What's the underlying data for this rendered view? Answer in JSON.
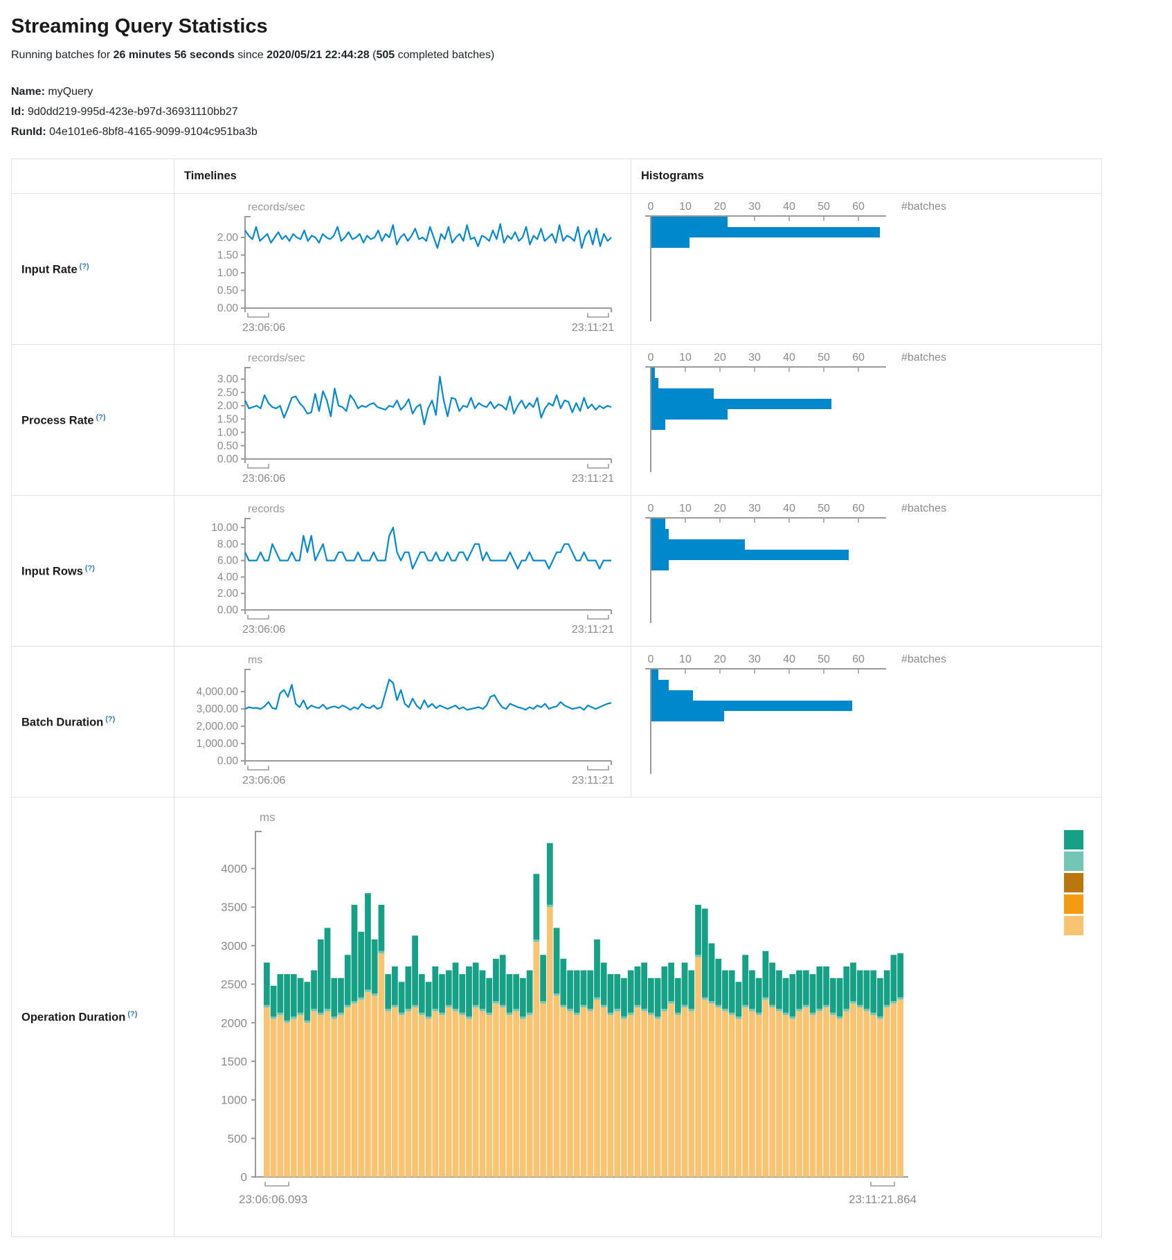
{
  "page": {
    "title": "Streaming Query Statistics",
    "running": {
      "text1": "Running batches for",
      "duration": "26 minutes 56 seconds",
      "text2": "since",
      "start_time": "2020/05/21 22:44:28",
      "text3": "(",
      "completed_count": "505",
      "text4": "completed batches)"
    },
    "query": {
      "name_label": "Name:",
      "name_value": "myQuery",
      "id_label": "Id:",
      "id_value": "9d0dd219-995d-423e-b97d-36931110bb27",
      "runid_label": "RunId:",
      "runid_value": "04e101e6-8bf8-4165-9099-9104c951ba3b"
    }
  },
  "table": {
    "col_timelines": "Timelines",
    "col_histograms": "Histograms",
    "help_marker": "(?)",
    "rows": [
      {
        "label": "Input Rate"
      },
      {
        "label": "Process Rate"
      },
      {
        "label": "Input Rows"
      },
      {
        "label": "Batch Duration"
      },
      {
        "label": "Operation Duration"
      }
    ]
  },
  "colors": {
    "line": "#0088cc",
    "histogram": "#0088cc",
    "axis": "#999999",
    "tick_text": "#8a8a8a",
    "legend": [
      "#16A085",
      "#73C6B6",
      "#B9770E",
      "#F39C12",
      "#F8C471"
    ]
  },
  "chart_data": [
    {
      "type": "line",
      "name": "input-rate-timeline",
      "unit": "records/sec",
      "x_start": "23:06:06",
      "x_end": "23:11:21",
      "ylim": [
        0,
        2.45
      ],
      "ytick_values": [
        0,
        0.5,
        1,
        1.5,
        2
      ],
      "ytick_labels": [
        "0.00",
        "0.50",
        "1.00",
        "1.50",
        "2.00"
      ],
      "values": [
        2.2,
        2.05,
        1.95,
        2.3,
        1.9,
        2.0,
        2.1,
        1.85,
        2.0,
        2.15,
        1.95,
        2.05,
        1.9,
        2.1,
        2.0,
        1.95,
        2.2,
        1.9,
        2.05,
        2.0,
        1.85,
        2.1,
        2.0,
        1.95,
        2.05,
        2.3,
        1.9,
        2.0,
        2.15,
        1.95,
        2.0,
        2.1,
        1.85,
        2.05,
        1.95,
        2.0,
        2.2,
        1.9,
        2.1,
        2.0,
        2.35,
        1.8,
        2.0,
        2.1,
        1.9,
        2.05,
        2.25,
        1.95,
        2.0,
        1.9,
        2.3,
        2.0,
        1.7,
        2.1,
        1.95,
        2.3,
        1.85,
        2.0,
        2.1,
        1.9,
        2.35,
        1.95,
        2.0,
        1.75,
        2.05,
        2.0,
        1.9,
        2.2,
        1.95,
        2.38,
        1.85,
        2.05,
        1.95,
        2.15,
        1.9,
        2.0,
        2.3,
        1.8,
        2.05,
        1.95,
        2.25,
        1.9,
        2.0,
        2.1,
        1.85,
        2.35,
        1.9,
        2.05,
        2.0,
        1.9,
        2.3,
        1.7,
        2.05,
        2.2,
        1.8,
        2.25,
        1.75,
        2.1,
        1.9,
        2.0
      ]
    },
    {
      "type": "bar-h",
      "name": "input-rate-histogram",
      "xlabel": "#batches",
      "xticks": [
        0,
        10,
        20,
        30,
        40,
        50,
        60
      ],
      "xlim": [
        0,
        68
      ],
      "values": [
        22,
        66,
        11
      ]
    },
    {
      "type": "line",
      "name": "process-rate-timeline",
      "unit": "records/sec",
      "x_start": "23:06:06",
      "x_end": "23:11:21",
      "ylim": [
        0,
        3.25
      ],
      "ytick_values": [
        0,
        0.5,
        1,
        1.5,
        2,
        2.5,
        3
      ],
      "ytick_labels": [
        "0.00",
        "0.50",
        "1.00",
        "1.50",
        "2.00",
        "2.50",
        "3.00"
      ],
      "values": [
        2.2,
        1.9,
        1.95,
        2.0,
        1.9,
        2.4,
        2.1,
        1.95,
        1.9,
        2.0,
        1.55,
        1.9,
        2.3,
        2.35,
        2.1,
        1.95,
        1.7,
        1.75,
        2.45,
        1.8,
        2.55,
        2.2,
        1.6,
        2.65,
        2.0,
        1.95,
        1.8,
        2.4,
        2.2,
        1.9,
        2.0,
        1.95,
        2.05,
        2.1,
        1.95,
        1.9,
        1.85,
        2.0,
        1.95,
        2.2,
        1.85,
        2.0,
        2.25,
        1.7,
        1.95,
        2.05,
        1.3,
        1.9,
        2.2,
        1.65,
        3.1,
        2.2,
        1.6,
        2.3,
        2.25,
        1.8,
        2.0,
        1.95,
        2.3,
        1.9,
        2.1,
        2.0,
        1.95,
        2.15,
        1.9,
        2.05,
        2.0,
        1.85,
        2.35,
        1.7,
        2.0,
        2.2,
        1.9,
        2.1,
        1.95,
        2.3,
        1.55,
        1.9,
        2.1,
        2.0,
        2.4,
        1.9,
        2.2,
        2.15,
        1.75,
        2.1,
        1.8,
        2.3,
        1.9,
        2.05,
        1.85,
        2.0,
        1.9,
        2.0,
        1.95
      ]
    },
    {
      "type": "bar-h",
      "name": "process-rate-histogram",
      "xlabel": "#batches",
      "xticks": [
        0,
        10,
        20,
        30,
        40,
        50,
        60
      ],
      "xlim": [
        0,
        68
      ],
      "values": [
        1,
        2,
        18,
        52,
        22,
        4
      ]
    },
    {
      "type": "line",
      "name": "input-rows-timeline",
      "unit": "records",
      "x_start": "23:06:06",
      "x_end": "23:11:21",
      "ylim": [
        0,
        10.5
      ],
      "ytick_values": [
        0,
        2,
        4,
        6,
        8,
        10
      ],
      "ytick_labels": [
        "0.00",
        "2.00",
        "4.00",
        "6.00",
        "8.00",
        "10.00"
      ],
      "values": [
        7,
        6,
        6,
        6,
        7,
        6,
        6,
        8,
        7,
        6,
        6,
        6,
        7,
        6,
        6,
        9,
        7,
        9,
        6,
        7,
        8,
        6,
        6,
        6,
        7,
        7,
        6,
        6,
        6,
        7,
        6,
        6,
        6,
        7,
        6,
        6,
        6,
        9,
        10,
        7,
        6,
        7,
        7,
        5,
        6,
        7,
        7,
        6,
        6,
        7,
        6,
        6,
        7,
        6,
        6,
        7,
        7,
        6,
        7,
        8,
        8,
        6,
        7,
        6,
        6,
        6,
        6,
        6,
        7,
        6,
        5,
        6,
        6,
        7,
        6,
        6,
        6,
        6,
        5,
        6,
        7,
        7,
        8,
        8,
        7,
        6,
        6,
        7,
        6,
        6,
        6,
        5,
        6,
        6,
        6
      ]
    },
    {
      "type": "bar-h",
      "name": "input-rows-histogram",
      "xlabel": "#batches",
      "xticks": [
        0,
        10,
        20,
        30,
        40,
        50,
        60
      ],
      "xlim": [
        0,
        68
      ],
      "values": [
        4,
        5,
        27,
        57,
        5
      ]
    },
    {
      "type": "line",
      "name": "batch-duration-timeline",
      "unit": "ms",
      "x_start": "23:06:06",
      "x_end": "23:11:21",
      "ylim": [
        0,
        5000
      ],
      "ytick_values": [
        0,
        1000,
        2000,
        3000,
        4000
      ],
      "ytick_labels": [
        "0.00",
        "1,000.00",
        "2,000.00",
        "3,000.00",
        "4,000.00"
      ],
      "values": [
        3000,
        3100,
        3050,
        3060,
        3000,
        3150,
        3400,
        3050,
        3000,
        3900,
        4100,
        3700,
        4400,
        3300,
        3100,
        3500,
        3000,
        3200,
        3100,
        3050,
        3250,
        3000,
        3100,
        3150,
        3050,
        3200,
        3100,
        2950,
        3100,
        3000,
        3300,
        3100,
        3050,
        3200,
        3000,
        3100,
        3900,
        4700,
        4500,
        3500,
        4100,
        3300,
        3100,
        3600,
        3200,
        3000,
        3500,
        3100,
        3300,
        3050,
        3200,
        3100,
        3000,
        3100,
        3200,
        3000,
        3100,
        2950,
        3000,
        3050,
        3100,
        3000,
        3200,
        3700,
        3800,
        3400,
        3100,
        3000,
        3300,
        3200,
        3100,
        3050,
        2950,
        3100,
        3000,
        3200,
        3100,
        3300,
        3000,
        3100,
        3150,
        3400,
        3200,
        3100,
        3000,
        3050,
        3100,
        2950,
        3200,
        3100,
        3000,
        3100,
        3200,
        3300,
        3350
      ]
    },
    {
      "type": "bar-h",
      "name": "batch-duration-histogram",
      "xlabel": "#batches",
      "xticks": [
        0,
        10,
        20,
        30,
        40,
        50,
        60
      ],
      "xlim": [
        0,
        68
      ],
      "values": [
        2,
        5,
        12,
        58,
        21
      ]
    },
    {
      "type": "stacked-bar",
      "name": "operation-duration",
      "unit": "ms",
      "x_start": "23:06:06.093",
      "x_end": "23:11:21.864",
      "ylim": [
        0,
        4400
      ],
      "ytick_values": [
        0,
        500,
        1000,
        1500,
        2000,
        2500,
        3000,
        3500,
        4000
      ],
      "ytick_labels": [
        "0",
        "500",
        "1000",
        "1500",
        "2000",
        "2500",
        "3000",
        "3500",
        "4000"
      ],
      "legend_colors": [
        "#16A085",
        "#73C6B6",
        "#B9770E",
        "#F39C12",
        "#F8C471"
      ],
      "series": [
        {
          "name": "base",
          "color": "#F8C471",
          "values": [
            2200,
            2050,
            2100,
            2000,
            2050,
            2100,
            2000,
            2150,
            2100,
            2150,
            2050,
            2100,
            2200,
            2250,
            2300,
            2400,
            2350,
            2900,
            2150,
            2200,
            2100,
            2150,
            2200,
            2100,
            2050,
            2150,
            2100,
            2200,
            2150,
            2100,
            2050,
            2200,
            2150,
            2100,
            2250,
            2200,
            2100,
            2150,
            2050,
            2100,
            3050,
            2250,
            3500,
            2350,
            2200,
            2150,
            2100,
            2200,
            2150,
            2300,
            2200,
            2100,
            2150,
            2050,
            2100,
            2200,
            2150,
            2100,
            2050,
            2150,
            2250,
            2100,
            2200,
            2150,
            2850,
            2300,
            2250,
            2200,
            2150,
            2100,
            2050,
            2200,
            2150,
            2100,
            2300,
            2200,
            2150,
            2100,
            2050,
            2150,
            2200,
            2100,
            2150,
            2200,
            2100,
            2050,
            2150,
            2250,
            2200,
            2150,
            2100,
            2050,
            2200,
            2250,
            2300
          ]
        },
        {
          "name": "mid",
          "color": "#73C6B6",
          "values": [
            30,
            30,
            30,
            30,
            30,
            30,
            30,
            30,
            30,
            30,
            30,
            30,
            30,
            30,
            30,
            30,
            30,
            30,
            30,
            30,
            30,
            30,
            30,
            30,
            30,
            30,
            30,
            30,
            30,
            30,
            30,
            30,
            30,
            30,
            30,
            30,
            30,
            30,
            30,
            30,
            30,
            30,
            30,
            30,
            30,
            30,
            30,
            30,
            30,
            30,
            30,
            30,
            30,
            30,
            30,
            30,
            30,
            30,
            30,
            30,
            30,
            30,
            30,
            30,
            30,
            30,
            30,
            30,
            30,
            30,
            30,
            30,
            30,
            30,
            30,
            30,
            30,
            30,
            30,
            30,
            30,
            30,
            30,
            30,
            30,
            30,
            30,
            30,
            30,
            30,
            30,
            30,
            30,
            30,
            30
          ]
        },
        {
          "name": "top",
          "color": "#16A085",
          "values": [
            550,
            400,
            500,
            600,
            550,
            450,
            500,
            500,
            950,
            1050,
            500,
            450,
            650,
            1250,
            850,
            1250,
            700,
            600,
            450,
            500,
            400,
            550,
            900,
            500,
            450,
            550,
            500,
            450,
            600,
            500,
            650,
            550,
            500,
            450,
            550,
            650,
            500,
            450,
            500,
            550,
            850,
            600,
            800,
            850,
            600,
            500,
            550,
            450,
            500,
            750,
            550,
            500,
            450,
            500,
            550,
            500,
            600,
            450,
            500,
            550,
            500,
            450,
            550,
            500,
            650,
            1150,
            750,
            600,
            500,
            550,
            450,
            650,
            500,
            450,
            600,
            550,
            500,
            450,
            550,
            500,
            450,
            500,
            550,
            500,
            450,
            500,
            550,
            500,
            450,
            500,
            550,
            500,
            450,
            600,
            570
          ]
        }
      ]
    }
  ]
}
